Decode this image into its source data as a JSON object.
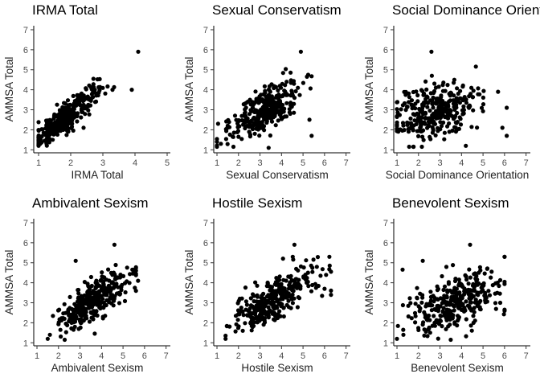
{
  "chart_data": [
    {
      "type": "scatter",
      "title": "IRMA Total",
      "xlabel": "IRMA Total",
      "ylabel": "AMMSA Total",
      "xlim": [
        0.85,
        5.1
      ],
      "ylim": [
        0.85,
        7.2
      ],
      "xticks": [
        1,
        2,
        3,
        4,
        5
      ],
      "yticks": [
        1,
        2,
        3,
        4,
        5,
        6,
        7
      ],
      "generator": {
        "mode": "corr",
        "n": 340,
        "xmin": 1.0,
        "xmax": 3.4,
        "xmean": 1.85,
        "xsd": 0.5,
        "intercept": 0.1,
        "slope": 1.38,
        "noise": 0.33
      },
      "points": [
        [
          4.1,
          5.9
        ],
        [
          3.3,
          4.0
        ],
        [
          3.9,
          4.0
        ],
        [
          1.0,
          1.2
        ],
        [
          1.05,
          1.3
        ],
        [
          2.4,
          2.1
        ]
      ]
    },
    {
      "type": "scatter",
      "title": "Sexual Conservatism",
      "xlabel": "Sexual Conservatism",
      "ylabel": "AMMSA Total",
      "xlim": [
        0.85,
        7.2
      ],
      "ylim": [
        0.85,
        7.2
      ],
      "xticks": [
        1,
        2,
        3,
        4,
        5,
        6,
        7
      ],
      "yticks": [
        1,
        2,
        3,
        4,
        5,
        6,
        7
      ],
      "generator": {
        "mode": "corr",
        "n": 330,
        "xmin": 1.0,
        "xmax": 5.4,
        "xmean": 3.2,
        "xsd": 0.8,
        "intercept": 1.2,
        "slope": 0.56,
        "noise": 0.55
      },
      "points": [
        [
          1.0,
          1.4
        ],
        [
          4.9,
          5.9
        ],
        [
          5.4,
          1.7
        ],
        [
          5.3,
          2.5
        ],
        [
          3.4,
          1.1
        ],
        [
          1.5,
          2.2
        ]
      ]
    },
    {
      "type": "scatter",
      "title": "Social Dominance Orientation",
      "xlabel": "Social Dominance Orientation",
      "ylabel": "AMMSA Total",
      "xlim": [
        0.85,
        7.2
      ],
      "ylim": [
        0.85,
        7.2
      ],
      "xticks": [
        1,
        2,
        3,
        4,
        5,
        6,
        7
      ],
      "yticks": [
        1,
        2,
        3,
        4,
        5,
        6,
        7
      ],
      "generator": {
        "mode": "corr",
        "n": 330,
        "xmin": 1.0,
        "xmax": 5.4,
        "xmean": 2.8,
        "xsd": 1.0,
        "intercept": 2.2,
        "slope": 0.25,
        "noise": 0.7
      },
      "points": [
        [
          2.6,
          5.9
        ],
        [
          5.7,
          3.9
        ],
        [
          6.1,
          3.1
        ],
        [
          6.1,
          1.7
        ],
        [
          5.9,
          2.1
        ],
        [
          4.2,
          1.2
        ]
      ]
    },
    {
      "type": "scatter",
      "title": "Ambivalent Sexism",
      "xlabel": "Ambivalent Sexism",
      "ylabel": "AMMSA Total",
      "xlim": [
        0.85,
        7.2
      ],
      "ylim": [
        0.85,
        7.2
      ],
      "xticks": [
        1,
        2,
        3,
        4,
        5,
        6,
        7
      ],
      "yticks": [
        1,
        2,
        3,
        4,
        5,
        6,
        7
      ],
      "generator": {
        "mode": "corr",
        "n": 340,
        "xmin": 1.5,
        "xmax": 5.6,
        "xmean": 3.6,
        "xsd": 0.8,
        "intercept": 0.7,
        "slope": 0.66,
        "noise": 0.5
      },
      "points": [
        [
          4.6,
          5.9
        ],
        [
          2.8,
          5.1
        ],
        [
          1.5,
          1.2
        ],
        [
          1.6,
          1.4
        ],
        [
          5.6,
          3.6
        ],
        [
          5.7,
          4.1
        ]
      ]
    },
    {
      "type": "scatter",
      "title": "Hostile Sexism",
      "xlabel": "Hostile Sexism",
      "ylabel": "AMMSA Total",
      "xlim": [
        0.85,
        7.2
      ],
      "ylim": [
        0.85,
        7.2
      ],
      "xticks": [
        1,
        2,
        3,
        4,
        5,
        6,
        7
      ],
      "yticks": [
        1,
        2,
        3,
        4,
        5,
        6,
        7
      ],
      "generator": {
        "mode": "corr",
        "n": 340,
        "xmin": 1.4,
        "xmax": 6.3,
        "xmean": 3.6,
        "xsd": 0.95,
        "intercept": 1.0,
        "slope": 0.6,
        "noise": 0.55
      },
      "points": [
        [
          4.6,
          5.9
        ],
        [
          1.4,
          1.2
        ],
        [
          6.3,
          3.4
        ],
        [
          6.0,
          3.7
        ],
        [
          2.2,
          1.6
        ]
      ]
    },
    {
      "type": "scatter",
      "title": "Benevolent Sexism",
      "xlabel": "Benevolent Sexism",
      "ylabel": "AMMSA Total",
      "xlim": [
        0.85,
        7.2
      ],
      "ylim": [
        0.85,
        7.2
      ],
      "xticks": [
        1,
        2,
        3,
        4,
        5,
        6,
        7
      ],
      "yticks": [
        1,
        2,
        3,
        4,
        5,
        6,
        7
      ],
      "generator": {
        "mode": "corr",
        "n": 330,
        "xmin": 1.0,
        "xmax": 6.0,
        "xmean": 3.6,
        "xsd": 1.05,
        "intercept": 1.9,
        "slope": 0.33,
        "noise": 0.65
      },
      "points": [
        [
          4.4,
          5.9
        ],
        [
          2.2,
          5.1
        ],
        [
          1.0,
          1.2
        ],
        [
          6.0,
          2.6
        ],
        [
          5.8,
          3.0
        ],
        [
          1.3,
          1.4
        ]
      ]
    }
  ]
}
